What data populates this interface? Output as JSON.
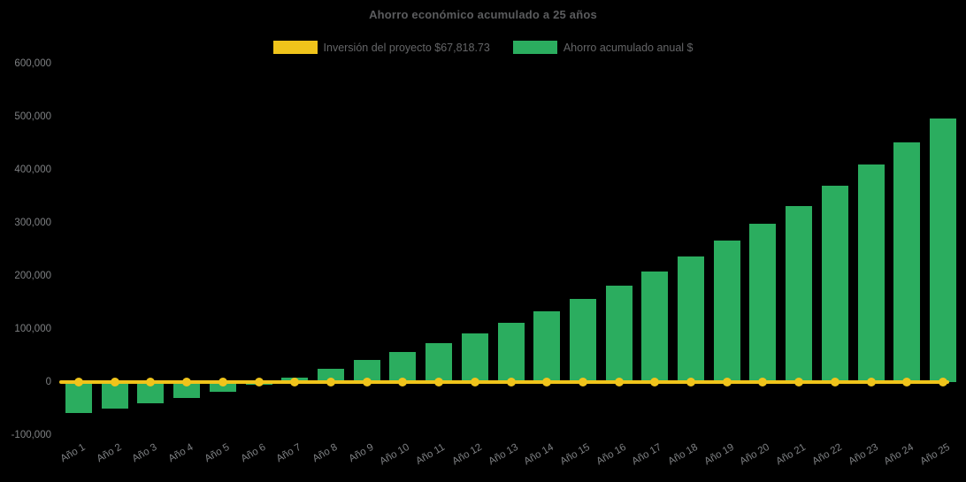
{
  "title": "Ahorro económico acumulado a 25 años",
  "legend": [
    {
      "label": "Inversión del proyecto $67,818.73",
      "color": "#f0c41b"
    },
    {
      "label": "Ahorro acumulado anual $",
      "color": "#2bad5f"
    }
  ],
  "colors": {
    "background": "#000000",
    "bar": "#2bad5f",
    "line": "#f0c41b",
    "title_text": "#5b5c5e",
    "tick_text": "#7e8083"
  },
  "chart_data": {
    "type": "bar",
    "title": "Ahorro económico acumulado a 25 años",
    "categories": [
      "Año 1",
      "Año 2",
      "Año 3",
      "Año 4",
      "Año 5",
      "Año 6",
      "Año 7",
      "Año 8",
      "Año 9",
      "Año 10",
      "Año 11",
      "Año 12",
      "Año 13",
      "Año 14",
      "Año 15",
      "Año 16",
      "Año 17",
      "Año 18",
      "Año 19",
      "Año 20",
      "Año 21",
      "Año 22",
      "Año 23",
      "Año 24",
      "Año 25"
    ],
    "series": [
      {
        "name": "Inversión del proyecto $67,818.73",
        "type": "line",
        "color": "#f0c41b",
        "values": [
          0,
          0,
          0,
          0,
          0,
          0,
          0,
          0,
          0,
          0,
          0,
          0,
          0,
          0,
          0,
          0,
          0,
          0,
          0,
          0,
          0,
          0,
          0,
          0,
          0
        ]
      },
      {
        "name": "Ahorro acumulado anual $",
        "type": "bar",
        "color": "#2bad5f",
        "values": [
          -58500,
          -50000,
          -40000,
          -30000,
          -18500,
          -5000,
          8000,
          24500,
          41000,
          57000,
          73500,
          92000,
          111000,
          133000,
          157000,
          182000,
          208000,
          237000,
          266000,
          298000,
          332000,
          370000,
          410000,
          452000,
          497000
        ]
      }
    ],
    "xlabel": "",
    "ylabel": "",
    "ylim": [
      -100000,
      600000
    ],
    "ytick_step": 100000,
    "ytick_labels": [
      "600,000",
      "500,000",
      "400,000",
      "300,000",
      "200,000",
      "100,000",
      "0",
      "-100,000"
    ],
    "grid": false,
    "legend_position": "top",
    "background": "#000000"
  }
}
